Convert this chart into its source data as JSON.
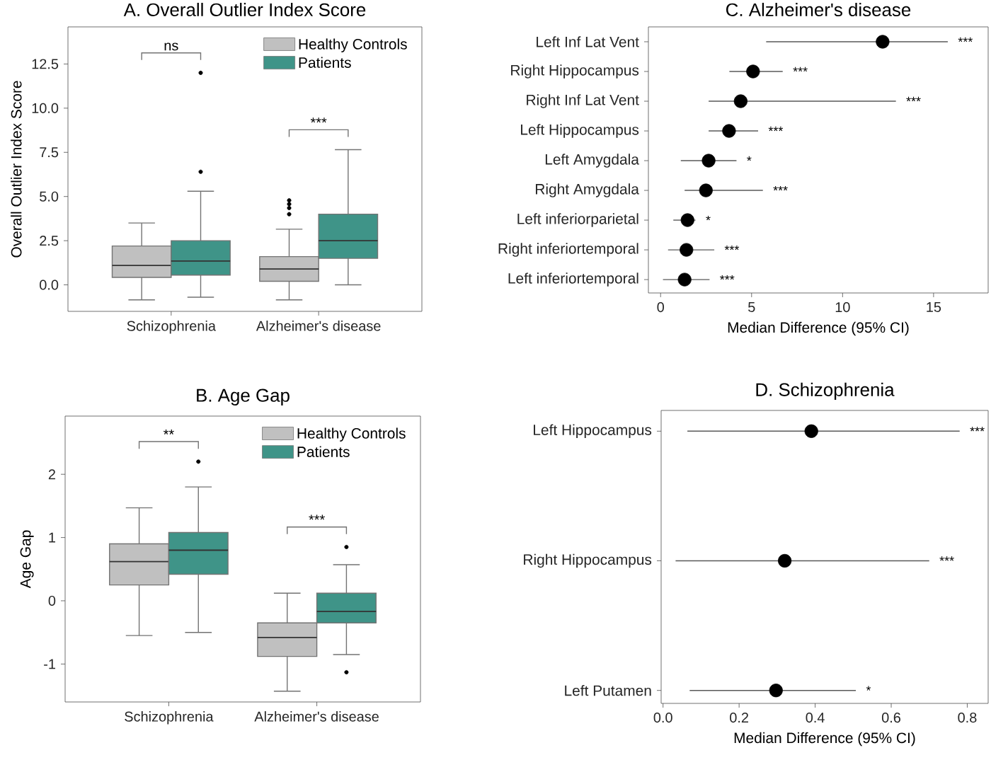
{
  "chart_data": [
    {
      "type": "box",
      "title": "A. Overall Outlier Index Score",
      "ylabel": "Overall Outlier Index Score",
      "categories": [
        "Schizophrenia",
        "Alzheimer's disease"
      ],
      "series": [
        {
          "name": "Healthy Controls",
          "color": "#c0c0c0",
          "boxes": [
            {
              "low": -0.85,
              "q1": 0.42,
              "median": 1.1,
              "q3": 2.2,
              "high": 3.5
            },
            {
              "low": -0.85,
              "q1": 0.2,
              "median": 0.9,
              "q3": 1.6,
              "high": 3.15,
              "outliers": [
                4.0,
                4.35,
                4.57,
                4.78
              ]
            }
          ]
        },
        {
          "name": "Patients",
          "color": "#3f9488",
          "boxes": [
            {
              "low": -0.7,
              "q1": 0.55,
              "median": 1.35,
              "q3": 2.5,
              "high": 5.3,
              "outliers": [
                6.4,
                12.0
              ]
            },
            {
              "low": 0.0,
              "q1": 1.5,
              "median": 2.5,
              "q3": 4.0,
              "high": 7.65
            }
          ]
        }
      ],
      "ylim": [
        -1.5,
        14.6
      ],
      "yticks": [
        {
          "value": 0,
          "label": "0.0"
        },
        {
          "value": 2.5,
          "label": "2.5"
        },
        {
          "value": 5,
          "label": "5.0"
        },
        {
          "value": 7.5,
          "label": "7.5"
        },
        {
          "value": 10,
          "label": "10.0"
        },
        {
          "value": 12.5,
          "label": "12.5"
        }
      ],
      "legend": "top right",
      "annotations": [
        "ns",
        "***"
      ]
    },
    {
      "type": "box",
      "title": "B. Age Gap",
      "ylabel": "Age Gap",
      "categories": [
        "Schizophrenia",
        "Alzheimer's disease"
      ],
      "series": [
        {
          "name": "Healthy Controls",
          "color": "#c0c0c0",
          "boxes": [
            {
              "low": -0.55,
              "q1": 0.25,
              "median": 0.62,
              "q3": 0.9,
              "high": 1.47
            },
            {
              "low": -1.43,
              "q1": -0.88,
              "median": -0.58,
              "q3": -0.35,
              "high": 0.12
            }
          ]
        },
        {
          "name": "Patients",
          "color": "#3f9488",
          "boxes": [
            {
              "low": -0.5,
              "q1": 0.42,
              "median": 0.8,
              "q3": 1.08,
              "high": 1.8,
              "outliers": [
                2.2
              ]
            },
            {
              "low": -0.85,
              "q1": -0.35,
              "median": -0.17,
              "q3": 0.12,
              "high": 0.57,
              "outliers": [
                0.85,
                -1.13
              ]
            }
          ]
        }
      ],
      "ylim": [
        -1.6,
        2.92
      ],
      "yticks": [
        -1,
        0,
        1,
        2
      ],
      "legend": "top right",
      "annotations": [
        "**",
        "***"
      ]
    },
    {
      "type": "scatter",
      "orientation": "horizontal",
      "title": "C. Alzheimer's disease",
      "xlabel": "Median Difference (95% CI)",
      "categories": [
        "Left Inf Lat Vent",
        "Right Hippocampus",
        "Right Inf Lat Vent",
        "Left Hippocampus",
        "Left Amygdala",
        "Right Amygdala",
        "Left inferiorparietal",
        "Right inferiortemporal",
        "Left inferiortemporal"
      ],
      "values": [
        12.2,
        5.08,
        4.4,
        3.76,
        2.64,
        2.49,
        1.48,
        1.42,
        1.32
      ],
      "errors": [
        [
          5.8,
          15.78
        ],
        [
          3.78,
          6.71
        ],
        [
          2.64,
          12.93
        ],
        [
          2.64,
          5.36
        ],
        [
          1.11,
          4.17
        ],
        [
          1.32,
          5.62
        ],
        [
          0.7,
          1.92
        ],
        [
          0.41,
          2.95
        ],
        [
          0.13,
          2.69
        ]
      ],
      "color": "#000000",
      "marker": "circle",
      "xlim": [
        -0.67,
        18.0
      ],
      "xticks": [
        0,
        5,
        10,
        15
      ],
      "annotations": [
        "***",
        "***",
        "***",
        "***",
        "*",
        "***",
        "*",
        "***",
        "***"
      ]
    },
    {
      "type": "scatter",
      "orientation": "horizontal",
      "title": "D. Schizophrenia",
      "xlabel": "Median Difference (95% CI)",
      "categories": [
        "Left Hippocampus",
        "Right Hippocampus",
        "Left Putamen"
      ],
      "values": [
        0.39,
        0.32,
        0.297
      ],
      "errors": [
        [
          0.064,
          0.78
        ],
        [
          0.033,
          0.7
        ],
        [
          0.07,
          0.507
        ]
      ],
      "color": "#000000",
      "marker": "circle",
      "xlim": [
        -0.005,
        0.855
      ],
      "xticks": [
        {
          "value": 0,
          "label": "0.0"
        },
        {
          "value": 0.2,
          "label": "0.2"
        },
        {
          "value": 0.4,
          "label": "0.4"
        },
        {
          "value": 0.6,
          "label": "0.6"
        },
        {
          "value": 0.8,
          "label": "0.8"
        }
      ],
      "annotations": [
        "***",
        "***",
        "*"
      ]
    }
  ]
}
